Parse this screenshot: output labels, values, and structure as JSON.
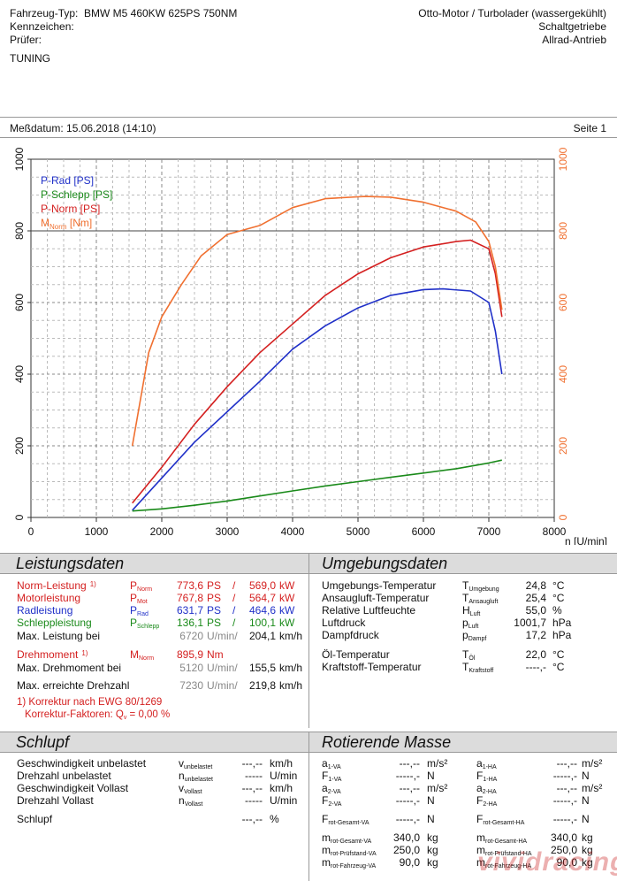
{
  "header": {
    "vehicle_label": "Fahrzeug-Typ:",
    "vehicle_value": "BMW M5 460KW 625PS 750NM",
    "plate_label": "Kennzeichen:",
    "tester_label": "Prüfer:",
    "engine": "Otto-Motor / Turbolader (wassergekühlt)",
    "gearbox": "Schaltgetriebe",
    "drive": "Allrad-Antrieb",
    "note": "TUNING",
    "date_text": "Meßdatum: 15.06.2018 (14:10)",
    "page_text": "Seite 1"
  },
  "colors": {
    "p_rad": "#2030c8",
    "p_schlepp": "#1a8a1a",
    "p_norm": "#d42020",
    "m_norm": "#f07030"
  },
  "chart_data": {
    "type": "line",
    "xlabel": "n [U/min]",
    "xlim": [
      0,
      8000
    ],
    "ylim_left": [
      0,
      1000
    ],
    "ylim_right": [
      0,
      1000
    ],
    "x_ticks": [
      "0",
      "1000",
      "2000",
      "3000",
      "4000",
      "5000",
      "6000",
      "7000",
      "8000"
    ],
    "y_ticks": [
      "0",
      "200",
      "400",
      "600",
      "800",
      "1000"
    ],
    "grid": true,
    "legend_position": "top-left",
    "legend": [
      "P-Rad [PS]",
      "P-Schlepp [PS]",
      "P-Norm [PS]",
      "M"
    ],
    "legend_mnorm_sub": "Norm",
    "legend_mnorm_unit": "[Nm]",
    "series": [
      {
        "name": "P-Rad [PS]",
        "color": "#2030c8",
        "x": [
          1550,
          2000,
          2500,
          3000,
          3500,
          4000,
          4500,
          5000,
          5500,
          6000,
          6300,
          6720,
          7000,
          7100,
          7200
        ],
        "y": [
          20,
          110,
          210,
          295,
          380,
          470,
          535,
          585,
          620,
          636,
          638,
          632,
          600,
          520,
          400
        ]
      },
      {
        "name": "P-Schlepp [PS]",
        "color": "#1a8a1a",
        "x": [
          1550,
          2000,
          2500,
          3000,
          3500,
          4000,
          4500,
          5000,
          5500,
          6000,
          6500,
          7000,
          7200
        ],
        "y": [
          18,
          24,
          34,
          46,
          60,
          74,
          88,
          100,
          112,
          124,
          136,
          152,
          160
        ]
      },
      {
        "name": "P-Norm [PS]",
        "color": "#d42020",
        "x": [
          1550,
          2000,
          2500,
          3000,
          3500,
          4000,
          4500,
          5000,
          5500,
          6000,
          6500,
          6720,
          7000,
          7100,
          7200
        ],
        "y": [
          40,
          140,
          260,
          365,
          460,
          540,
          620,
          680,
          725,
          755,
          770,
          774,
          750,
          680,
          560
        ]
      },
      {
        "name": "M",
        "color": "#f07030",
        "x": [
          1550,
          1800,
          2000,
          2300,
          2600,
          3000,
          3500,
          4000,
          4500,
          5000,
          5120,
          5500,
          6000,
          6500,
          6800,
          7000,
          7100,
          7200
        ],
        "y": [
          200,
          460,
          560,
          650,
          730,
          790,
          815,
          865,
          890,
          895,
          896,
          894,
          880,
          855,
          825,
          770,
          700,
          580
        ]
      }
    ]
  },
  "leistungsdaten": {
    "title": "Leistungsdaten",
    "rows": [
      {
        "label": "Norm-Leistung",
        "sup": "1)",
        "sym": "P",
        "sub": "Norm",
        "v1": "773,6",
        "u1": "PS",
        "sep": "/",
        "v2": "569,0",
        "u2": "kW",
        "cls": "red"
      },
      {
        "label": "Motorleistung",
        "sup": "",
        "sym": "P",
        "sub": "Mot",
        "v1": "767,8",
        "u1": "PS",
        "sep": "/",
        "v2": "564,7",
        "u2": "kW",
        "cls": "red"
      },
      {
        "label": "Radleistung",
        "sup": "",
        "sym": "P",
        "sub": "Rad",
        "v1": "631,7",
        "u1": "PS",
        "sep": "/",
        "v2": "464,6",
        "u2": "kW",
        "cls": "blue"
      },
      {
        "label": "Schleppleistung",
        "sup": "",
        "sym": "P",
        "sub": "Schlepp",
        "v1": "136,1",
        "u1": "PS",
        "sep": "/",
        "v2": "100,1",
        "u2": "kW",
        "cls": "green"
      }
    ],
    "max_power_label": "Max. Leistung bei",
    "max_power_rpm": "6720",
    "max_power_rpm_unit": "U/min/",
    "max_power_speed": "204,1",
    "speed_unit": "km/h",
    "torque_label": "Drehmoment",
    "torque_sup": "1)",
    "torque_sym": "M",
    "torque_sub": "Norm",
    "torque_value": "895,9",
    "torque_unit": "Nm",
    "max_torque_label": "Max. Drehmoment bei",
    "max_torque_rpm": "5120",
    "max_torque_rpm_unit": "U/min/",
    "max_torque_speed": "155,5",
    "max_rpm_label": "Max. erreichte Drehzahl",
    "max_rpm": "7230",
    "max_rpm_unit": "U/min/",
    "max_rpm_speed": "219,8",
    "footnote1": "1) Korrektur nach EWG 80/1269",
    "footnote2_a": "Korrektur-Faktoren: Q",
    "footnote2_sub": "v",
    "footnote2_b": " = 0,00 %"
  },
  "umgebungsdaten": {
    "title": "Umgebungsdaten",
    "rows": [
      {
        "label": "Umgebungs-Temperatur",
        "sym": "T",
        "sub": "Umgebung",
        "val": "24,8",
        "unit": "°C"
      },
      {
        "label": "Ansaugluft-Temperatur",
        "sym": "T",
        "sub": "Ansaugluft",
        "val": "25,4",
        "unit": "°C"
      },
      {
        "label": "Relative Luftfeuchte",
        "sym": "H",
        "sub": "Luft",
        "val": "55,0",
        "unit": "%"
      },
      {
        "label": "Luftdruck",
        "sym": "p",
        "sub": "Luft",
        "val": "1001,7",
        "unit": "hPa"
      },
      {
        "label": "Dampfdruck",
        "sym": "p",
        "sub": "Dampf",
        "val": "17,2",
        "unit": "hPa"
      },
      {
        "label": "Öl-Temperatur",
        "sym": "T",
        "sub": "Öl",
        "val": "22,0",
        "unit": "°C"
      },
      {
        "label": "Kraftstoff-Temperatur",
        "sym": "T",
        "sub": "Kraftstoff",
        "val": "----,-",
        "unit": "°C"
      }
    ]
  },
  "schlupf": {
    "title": "Schlupf",
    "rows": [
      {
        "label": "Geschwindigkeit unbelastet",
        "sym": "v",
        "sub": "unbelastet",
        "val": "---,--",
        "unit": "km/h"
      },
      {
        "label": "Drehzahl unbelastet",
        "sym": "n",
        "sub": "unbelastet",
        "val": "-----",
        "unit": "U/min"
      },
      {
        "label": "Geschwindigkeit Vollast",
        "sym": "v",
        "sub": "Vollast",
        "val": "---,--",
        "unit": "km/h"
      },
      {
        "label": "Drehzahl Vollast",
        "sym": "n",
        "sub": "Vollast",
        "val": "-----",
        "unit": "U/min"
      },
      {
        "label": "Schlupf",
        "sym": "",
        "sub": "",
        "val": "---,--",
        "unit": "%"
      }
    ]
  },
  "rotierende_masse": {
    "title": "Rotierende Masse",
    "left": [
      {
        "sym": "a",
        "sub": "1-VA",
        "val": "---,--",
        "unit": "m/s²"
      },
      {
        "sym": "F",
        "sub": "1-VA",
        "val": "-----,-",
        "unit": "N"
      },
      {
        "sym": "a",
        "sub": "2-VA",
        "val": "---,--",
        "unit": "m/s²"
      },
      {
        "sym": "F",
        "sub": "2-VA",
        "val": "-----,-",
        "unit": "N"
      },
      {
        "sym": "F",
        "sub": "rot-Gesamt-VA",
        "val": "-----,-",
        "unit": "N"
      },
      {
        "sym": "m",
        "sub": "rot-Gesamt-VA",
        "val": "340,0",
        "unit": "kg"
      },
      {
        "sym": "m",
        "sub": "rot-Prüfstand-VA",
        "val": "250,0",
        "unit": "kg"
      },
      {
        "sym": "m",
        "sub": "rot-Fahrzeug-VA",
        "val": "90,0",
        "unit": "kg"
      }
    ],
    "right": [
      {
        "sym": "a",
        "sub": "1-HA",
        "val": "---,--",
        "unit": "m/s²"
      },
      {
        "sym": "F",
        "sub": "1-HA",
        "val": "-----,-",
        "unit": "N"
      },
      {
        "sym": "a",
        "sub": "2-HA",
        "val": "---,--",
        "unit": "m/s²"
      },
      {
        "sym": "F",
        "sub": "2-HA",
        "val": "-----,-",
        "unit": "N"
      },
      {
        "sym": "F",
        "sub": "rot-Gesamt-HA",
        "val": "-----,-",
        "unit": "N"
      },
      {
        "sym": "m",
        "sub": "rot-Gesamt-HA",
        "val": "340,0",
        "unit": "kg"
      },
      {
        "sym": "m",
        "sub": "rot-Prüfstand-HA",
        "val": "250,0",
        "unit": "kg"
      },
      {
        "sym": "m",
        "sub": "rot-Fahrzeug-HA",
        "val": "90,0",
        "unit": "kg"
      }
    ]
  },
  "watermark": "vividracing"
}
